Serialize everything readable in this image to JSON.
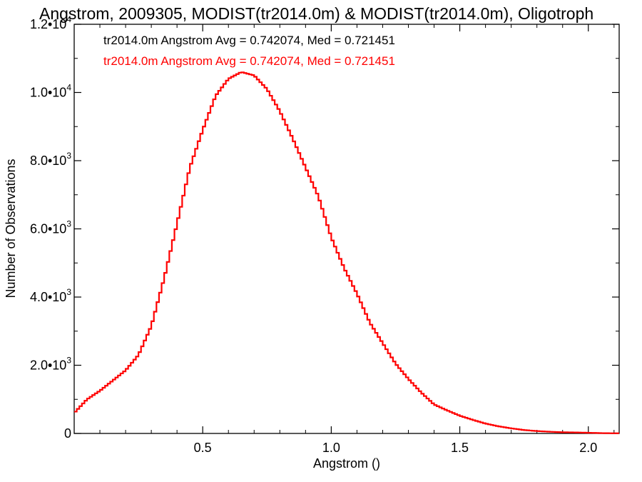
{
  "chart_data": {
    "type": "line",
    "style": "step-histogram",
    "title": "Angstrom, 2009305, MODIST(tr2014.0m) & MODIST(tr2014.0m), Oligotroph",
    "xlabel": "Angstrom ()",
    "ylabel": "Number of Observations",
    "xlim": [
      0.0,
      2.12
    ],
    "ylim": [
      0,
      12000
    ],
    "grid": false,
    "x_ticks": [
      0.5,
      1.0,
      1.5,
      2.0
    ],
    "x_tick_labels": [
      "0.5",
      "1.0",
      "1.5",
      "2.0"
    ],
    "y_ticks": [
      0,
      2000,
      4000,
      6000,
      8000,
      10000,
      12000
    ],
    "y_tick_labels": [
      {
        "mantissa": "0",
        "exponent": ""
      },
      {
        "mantissa": "2.0•10",
        "exponent": "3"
      },
      {
        "mantissa": "4.0•10",
        "exponent": "3"
      },
      {
        "mantissa": "6.0•10",
        "exponent": "3"
      },
      {
        "mantissa": "8.0•10",
        "exponent": "3"
      },
      {
        "mantissa": "1.0•10",
        "exponent": "4"
      },
      {
        "mantissa": "1.2•10",
        "exponent": "4"
      }
    ],
    "legend_placement": "top-left",
    "legend": [
      {
        "text": "tr2014.0m Angstrom Avg = 0.742074, Med = 0.721451",
        "color": "#000000"
      },
      {
        "text": "tr2014.0m Angstrom Avg = 0.742074, Med = 0.721451",
        "color": "#ff0000"
      }
    ],
    "series": [
      {
        "color": "#ff0000",
        "x": [
          0.0,
          0.05,
          0.1,
          0.15,
          0.2,
          0.25,
          0.3,
          0.35,
          0.4,
          0.45,
          0.5,
          0.55,
          0.6,
          0.65,
          0.7,
          0.75,
          0.8,
          0.85,
          0.9,
          0.95,
          1.0,
          1.05,
          1.1,
          1.15,
          1.2,
          1.25,
          1.3,
          1.35,
          1.4,
          1.45,
          1.5,
          1.55,
          1.6,
          1.65,
          1.7,
          1.75,
          1.8,
          1.85,
          1.9,
          1.95,
          2.0,
          2.05,
          2.1
        ],
        "y": [
          600,
          1000,
          1250,
          1550,
          1850,
          2300,
          3150,
          4550,
          6150,
          7800,
          8900,
          9900,
          10400,
          10600,
          10500,
          10100,
          9450,
          8650,
          7800,
          6950,
          5750,
          4850,
          4100,
          3250,
          2650,
          2050,
          1600,
          1200,
          850,
          680,
          520,
          400,
          290,
          210,
          150,
          100,
          70,
          50,
          35,
          30,
          20,
          10,
          5
        ]
      }
    ]
  }
}
